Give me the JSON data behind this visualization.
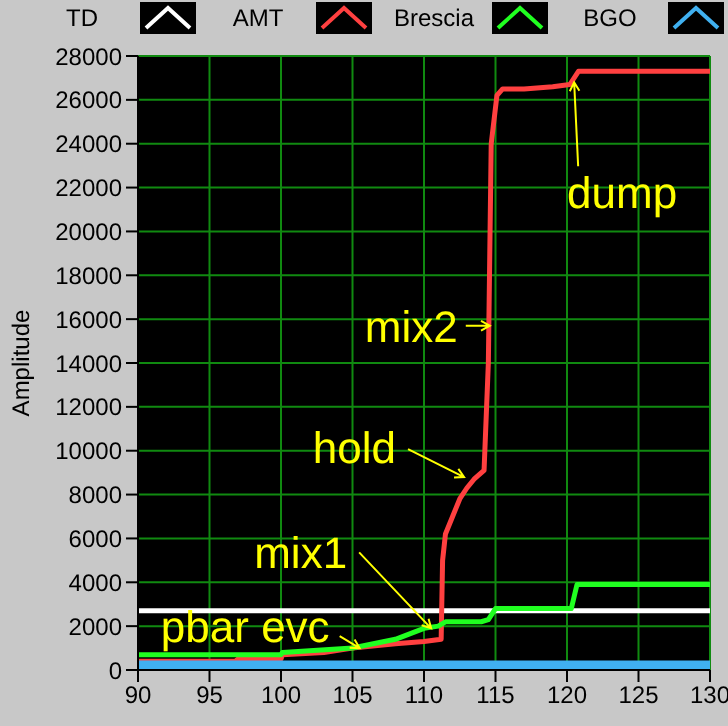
{
  "chart_data": {
    "type": "line",
    "ylabel": "Amplitude",
    "xlim": [
      90,
      130
    ],
    "xticks": [
      90,
      95,
      100,
      105,
      110,
      115,
      120,
      125,
      130
    ],
    "ylim": [
      0,
      28000
    ],
    "yticks": [
      0,
      2000,
      4000,
      6000,
      8000,
      10000,
      12000,
      14000,
      16000,
      18000,
      20000,
      22000,
      24000,
      26000,
      28000
    ],
    "grid": true,
    "legend": "top",
    "series": [
      {
        "name": "TD",
        "color": "#ffffff",
        "x": [
          90,
          130
        ],
        "values": [
          2700,
          2700
        ]
      },
      {
        "name": "AMT",
        "color": "#ff4040",
        "x": [
          90,
          96.8,
          97,
          100,
          100.1,
          103,
          105,
          108,
          110,
          111.2,
          111.3,
          111.5,
          112,
          112.5,
          113,
          113.5,
          114.2,
          114.5,
          114.7,
          115.1,
          115.5,
          117,
          119,
          120.2,
          120.8,
          130
        ],
        "values": [
          400,
          400,
          500,
          500,
          700,
          800,
          1000,
          1200,
          1300,
          1400,
          5000,
          6200,
          7000,
          7800,
          8300,
          8700,
          9100,
          14000,
          24000,
          26200,
          26500,
          26500,
          26600,
          26700,
          27300,
          27300
        ]
      },
      {
        "name": "Brescia",
        "color": "#20ff20",
        "x": [
          90,
          100,
          100.1,
          105,
          108,
          110,
          111,
          111.5,
          114,
          114.5,
          115,
          120.3,
          120.7,
          130
        ],
        "values": [
          700,
          700,
          800,
          1000,
          1400,
          1900,
          2000,
          2200,
          2200,
          2300,
          2800,
          2800,
          3900,
          3900
        ]
      },
      {
        "name": "BGO",
        "color": "#40b0f0",
        "x": [
          90,
          130
        ],
        "values": [
          200,
          200
        ]
      }
    ],
    "annotations": [
      {
        "text": "pbar evc",
        "x": 105.5,
        "y": 1000
      },
      {
        "text": "mix1",
        "x": 110.5,
        "y": 1900
      },
      {
        "text": "hold",
        "x": 112.8,
        "y": 8800
      },
      {
        "text": "mix2",
        "x": 114.6,
        "y": 15700
      },
      {
        "text": "dump",
        "x": 120.5,
        "y": 26800
      }
    ]
  }
}
